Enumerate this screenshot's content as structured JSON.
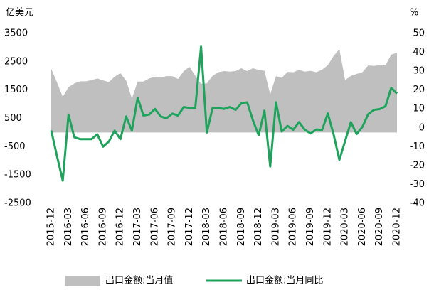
{
  "chart_data": {
    "type": "area-line",
    "y_label": "亿美元",
    "y2_label": "%",
    "categories": [
      "2015-12",
      null,
      null,
      "2016-03",
      null,
      null,
      "2016-06",
      null,
      null,
      "2016-09",
      null,
      null,
      "2016-12",
      null,
      null,
      "2017-03",
      null,
      null,
      "2017-06",
      null,
      null,
      "2017-09",
      null,
      null,
      "2017-12",
      null,
      null,
      "2018-03",
      null,
      null,
      "2018-06",
      null,
      null,
      "2018-09",
      null,
      null,
      "2018-12",
      null,
      null,
      "2019-03",
      null,
      null,
      "2019-06",
      null,
      null,
      "2019-09",
      null,
      null,
      "2019-12",
      null,
      null,
      "2020-03",
      null,
      null,
      "2020-06",
      null,
      null,
      "2020-09",
      null,
      null,
      "2020-12"
    ],
    "series": [
      {
        "name": "出口金额:当月值",
        "type": "area",
        "axis": "y",
        "color": "#bfbfbf",
        "values": [
          2250,
          1770,
          1260,
          1600,
          1730,
          1810,
          1810,
          1850,
          1910,
          1840,
          1780,
          1970,
          2100,
          1830,
          1200,
          1800,
          1800,
          1910,
          1970,
          1940,
          1990,
          1990,
          1890,
          2170,
          2320,
          2000,
          1720,
          1740,
          2000,
          2130,
          2170,
          2150,
          2170,
          2270,
          2170,
          2270,
          2210,
          2180,
          1350,
          1990,
          1930,
          2140,
          2130,
          2210,
          2150,
          2180,
          2130,
          2220,
          2380,
          2700,
          2950,
          1850,
          2000,
          2070,
          2130,
          2370,
          2350,
          2390,
          2370,
          2750,
          2820
        ]
      },
      {
        "name": "出口金额:当月同比",
        "type": "line",
        "axis": "y2",
        "color": "#1fa35c",
        "values": [
          -1.4,
          -15,
          -28,
          7,
          -5,
          -6,
          -6,
          -6,
          -3.5,
          -10,
          -7.3,
          -1.5,
          -6,
          6,
          -1.5,
          16,
          6.5,
          7,
          10,
          6,
          5,
          7.5,
          6.5,
          11,
          10.5,
          10.5,
          43,
          -2.5,
          10.5,
          10.5,
          10,
          11,
          9.5,
          13,
          13.5,
          4,
          -4,
          9.1,
          -20.5,
          13.5,
          -2,
          1,
          -1,
          3,
          -1,
          -3,
          -0.9,
          -1.1,
          7.6,
          -3.5,
          -17,
          -7,
          3,
          -3.3,
          0.5,
          7.2,
          9.5,
          9.9,
          11.4,
          21.1,
          18.1
        ]
      }
    ],
    "ylim": [
      -2500,
      3500
    ],
    "yticks": [
      -2500,
      -1500,
      -500,
      500,
      1500,
      2500,
      3500
    ],
    "y2lim": [
      -40,
      50
    ],
    "y2ticks": [
      -40,
      -30,
      -20,
      -10,
      0,
      10,
      20,
      30,
      40,
      50
    ],
    "legend": "bottom"
  }
}
